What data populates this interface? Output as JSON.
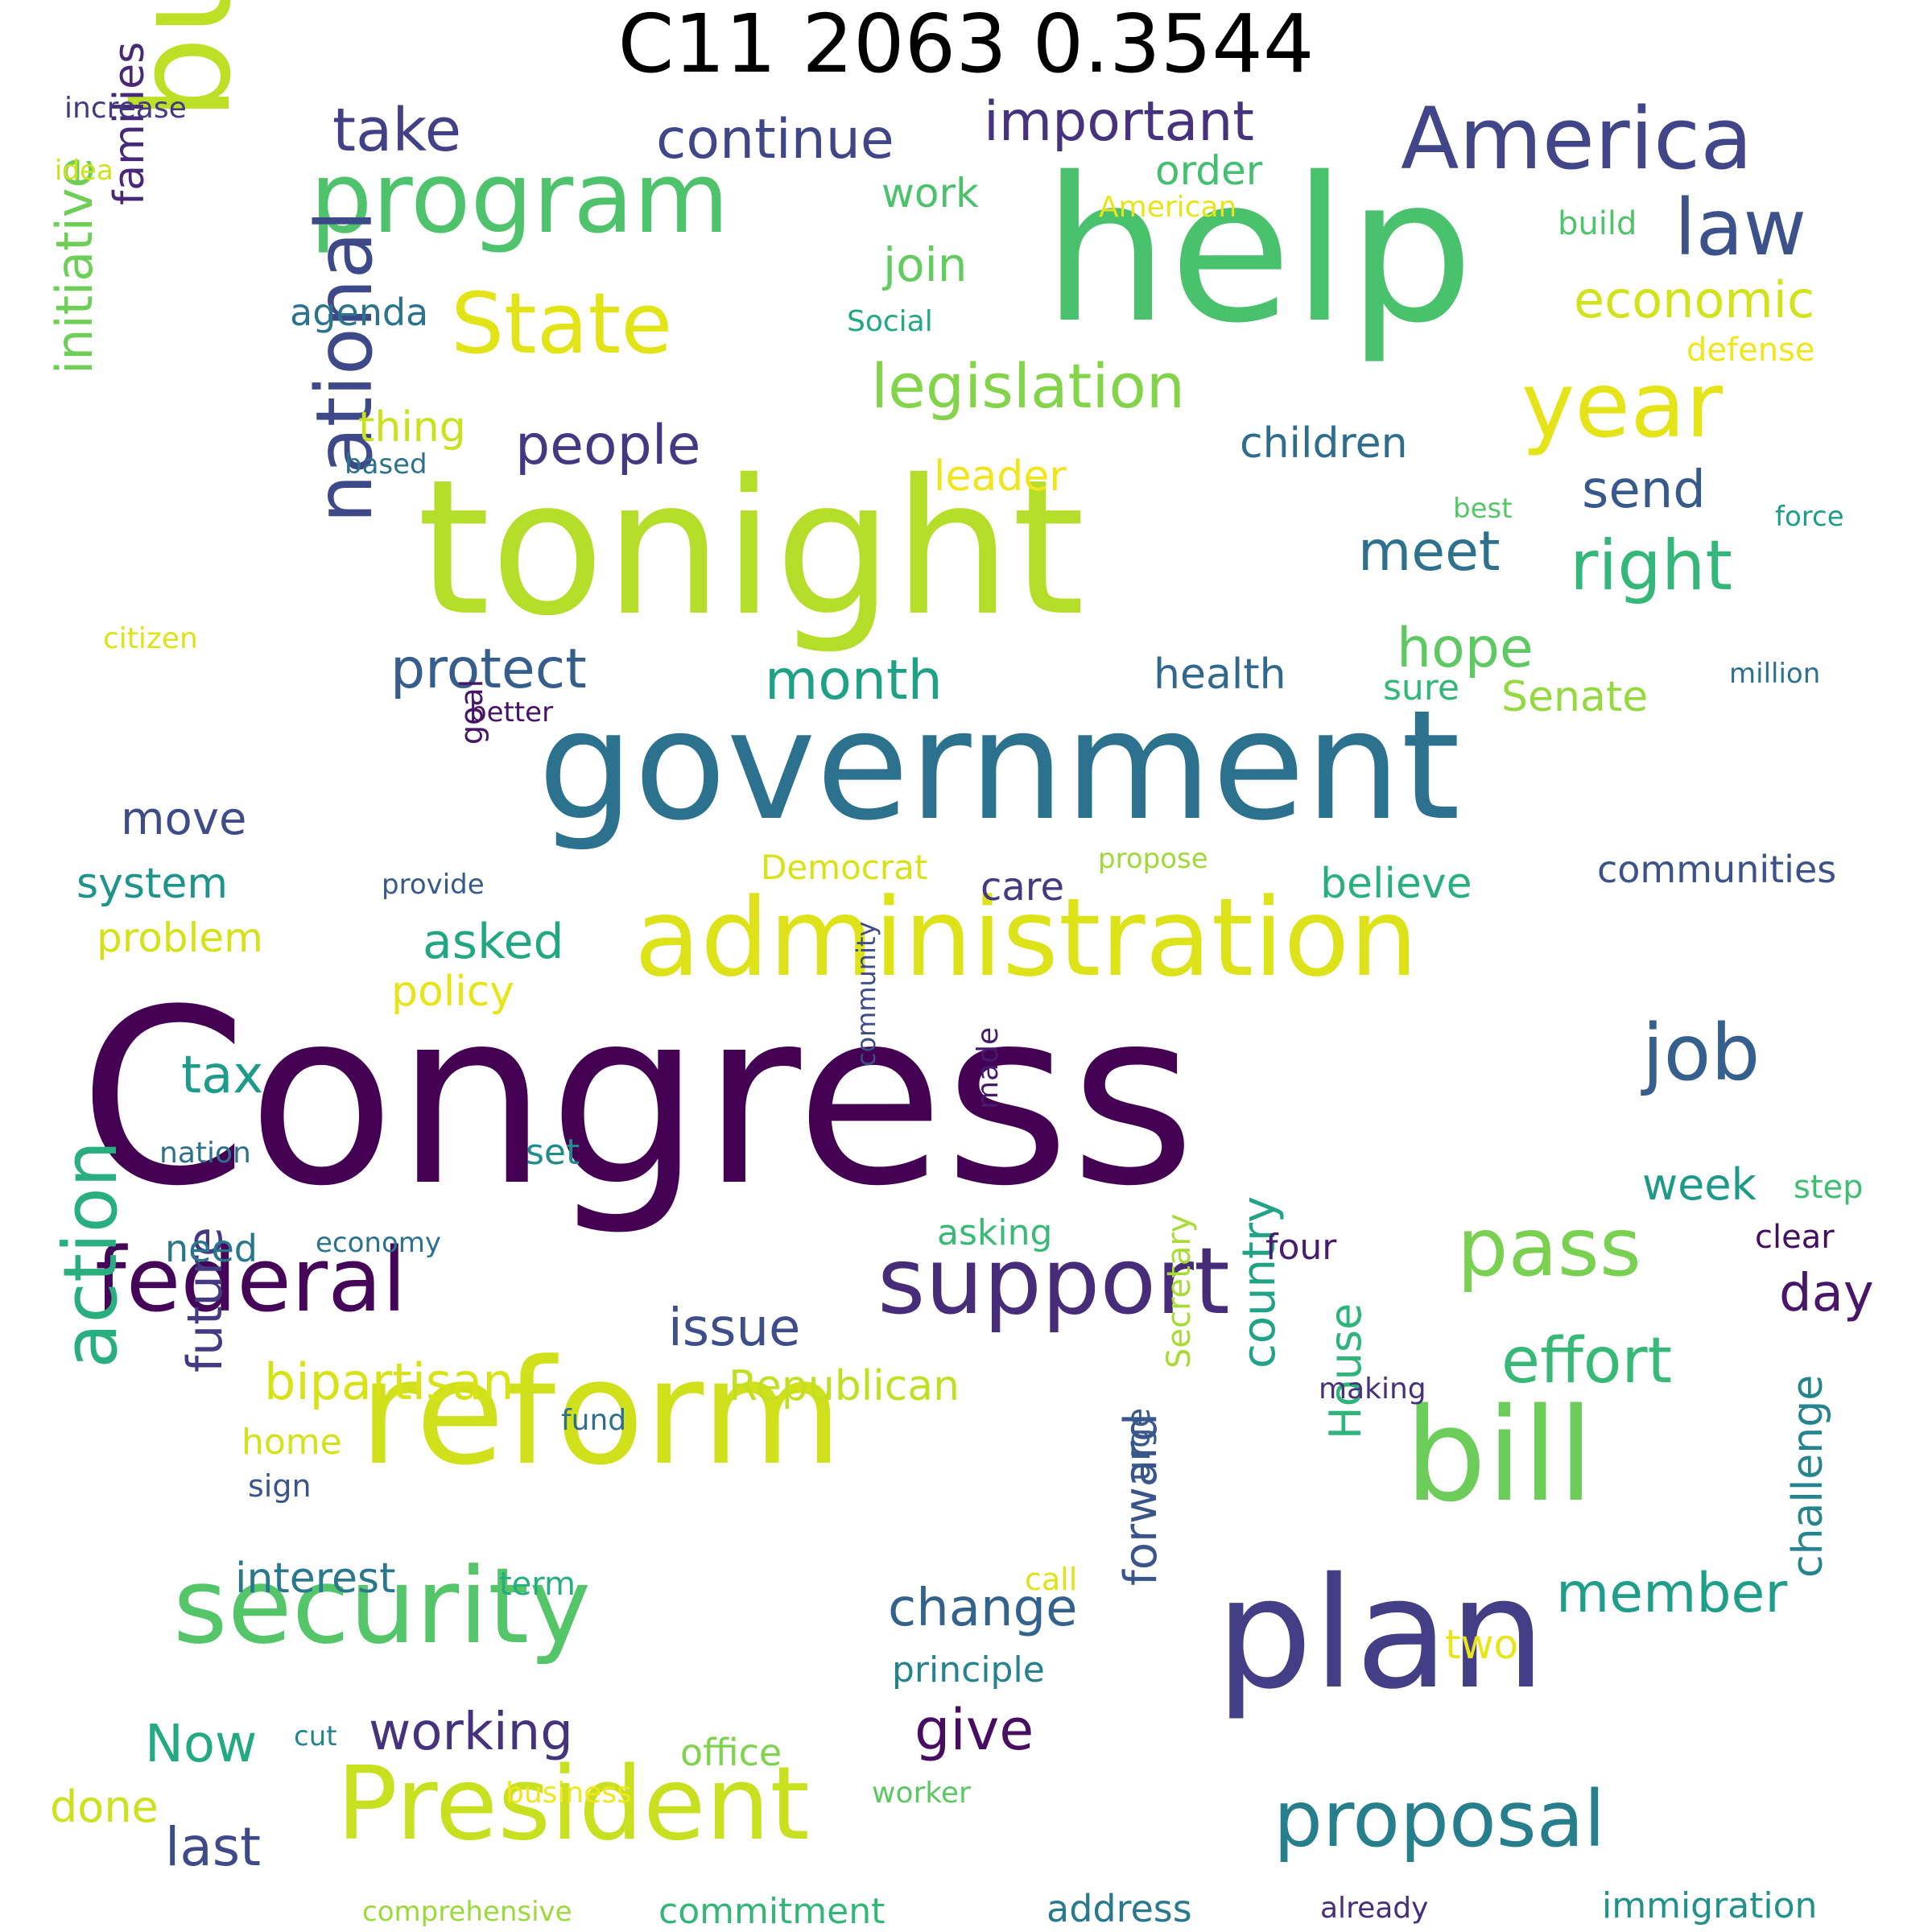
{
  "title": "C11 2063 0.3544",
  "words": [
    {
      "text": "Congress",
      "color": "#440154"
    },
    {
      "text": "tonight",
      "color": "#b5de2b"
    },
    {
      "text": "help",
      "color": "#4ac16d"
    },
    {
      "text": "government",
      "color": "#2c728e"
    },
    {
      "text": "budget",
      "color": "#bddf26"
    },
    {
      "text": "plan",
      "color": "#433e85"
    },
    {
      "text": "reform",
      "color": "#d0e11c"
    },
    {
      "text": "bill",
      "color": "#6ccd5a"
    },
    {
      "text": "administration",
      "color": "#dde318"
    },
    {
      "text": "security",
      "color": "#54c568"
    },
    {
      "text": "President",
      "color": "#c8e020"
    },
    {
      "text": "program",
      "color": "#4ec36b"
    },
    {
      "text": "America",
      "color": "#404688"
    },
    {
      "text": "support",
      "color": "#472c7a"
    },
    {
      "text": "federal",
      "color": "#450559"
    },
    {
      "text": "year",
      "color": "#e5e419"
    },
    {
      "text": "State",
      "color": "#e2e418"
    },
    {
      "text": "pass",
      "color": "#7ad151"
    },
    {
      "text": "national",
      "color": "#3e4989"
    },
    {
      "text": "action",
      "color": "#29af7f"
    },
    {
      "text": "proposal",
      "color": "#277f8e"
    },
    {
      "text": "job",
      "color": "#355f8d"
    },
    {
      "text": "law",
      "color": "#3b528b"
    },
    {
      "text": "right",
      "color": "#35b779"
    },
    {
      "text": "legislation",
      "color": "#84d44b"
    },
    {
      "text": "continue",
      "color": "#3f4788"
    },
    {
      "text": "important",
      "color": "#46327e"
    },
    {
      "text": "take",
      "color": "#424086"
    },
    {
      "text": "people",
      "color": "#453781"
    },
    {
      "text": "economic",
      "color": "#d2e21b"
    },
    {
      "text": "effort",
      "color": "#38b977"
    },
    {
      "text": "member",
      "color": "#1f9e89"
    },
    {
      "text": "protect",
      "color": "#355e8d"
    },
    {
      "text": "month",
      "color": "#1fa187"
    },
    {
      "text": "hope",
      "color": "#5ec962"
    },
    {
      "text": "bipartisan",
      "color": "#d8e219"
    },
    {
      "text": "issue",
      "color": "#3d4e8a"
    },
    {
      "text": "initiative",
      "color": "#6ece58"
    },
    {
      "text": "families",
      "color": "#482878"
    },
    {
      "text": "meet",
      "color": "#2d718e"
    },
    {
      "text": "send",
      "color": "#38598c"
    },
    {
      "text": "join",
      "color": "#63cb5f"
    },
    {
      "text": "children",
      "color": "#2f6c8e"
    },
    {
      "text": "change",
      "color": "#33638d"
    },
    {
      "text": "country",
      "color": "#20a386"
    },
    {
      "text": "forward",
      "color": "#3a548c"
    },
    {
      "text": "working",
      "color": "#46337e"
    },
    {
      "text": "last",
      "color": "#3e4a89"
    },
    {
      "text": "give",
      "color": "#470d60"
    },
    {
      "text": "future",
      "color": "#443983"
    },
    {
      "text": "Now",
      "color": "#23a983"
    },
    {
      "text": "Republican",
      "color": "#c2df23"
    },
    {
      "text": "health",
      "color": "#31688e"
    },
    {
      "text": "move",
      "color": "#3e4c8a"
    },
    {
      "text": "system",
      "color": "#1f948c"
    },
    {
      "text": "tax",
      "color": "#1e9b8a"
    },
    {
      "text": "asked",
      "color": "#22a785"
    },
    {
      "text": "order",
      "color": "#44bf70"
    },
    {
      "text": "agenda",
      "color": "#2c738e"
    },
    {
      "text": "thing",
      "color": "#cae11f"
    },
    {
      "text": "work",
      "color": "#4cc26c"
    },
    {
      "text": "leader",
      "color": "#f1e51d"
    },
    {
      "text": "believe",
      "color": "#2ab07f"
    },
    {
      "text": "day",
      "color": "#481769"
    },
    {
      "text": "interest",
      "color": "#2a788e"
    },
    {
      "text": "House",
      "color": "#2fb47c"
    },
    {
      "text": "challenge",
      "color": "#25848e"
    },
    {
      "text": "care",
      "color": "#443983"
    },
    {
      "text": "policy",
      "color": "#e7e419"
    },
    {
      "text": "problem",
      "color": "#d5e21a"
    },
    {
      "text": "Senate",
      "color": "#95d840"
    },
    {
      "text": "week",
      "color": "#1f998a"
    },
    {
      "text": "communities",
      "color": "#3b528b"
    },
    {
      "text": "two",
      "color": "#eae51a"
    },
    {
      "text": "immigration",
      "color": "#21918c"
    },
    {
      "text": "address",
      "color": "#29798e"
    },
    {
      "text": "commitment",
      "color": "#34b679"
    },
    {
      "text": "done",
      "color": "#cde11d"
    },
    {
      "text": "office",
      "color": "#7fd34e"
    },
    {
      "text": "principle",
      "color": "#26828e"
    },
    {
      "text": "Secretary",
      "color": "#a8db34"
    },
    {
      "text": "goal",
      "color": "#481467"
    },
    {
      "text": "Democrat",
      "color": "#d8e219"
    },
    {
      "text": "sure",
      "color": "#32b67a"
    },
    {
      "text": "four",
      "color": "#481d6f"
    },
    {
      "text": "asking",
      "color": "#3aba76"
    },
    {
      "text": "clear",
      "color": "#440f5f"
    },
    {
      "text": "step",
      "color": "#40bd72"
    },
    {
      "text": "set",
      "color": "#228c8d"
    },
    {
      "text": "need",
      "color": "#2a768e"
    },
    {
      "text": "home",
      "color": "#d2e21b"
    },
    {
      "text": "sign",
      "color": "#39558c"
    },
    {
      "text": "term",
      "color": "#26ad81"
    },
    {
      "text": "urge",
      "color": "#38598c"
    },
    {
      "text": "made",
      "color": "#481a6c"
    },
    {
      "text": "economy",
      "color": "#2c718e"
    },
    {
      "text": "community",
      "color": "#3d4d8a"
    },
    {
      "text": "nation",
      "color": "#2d708e"
    },
    {
      "text": "fund",
      "color": "#2e6e8e"
    },
    {
      "text": "making",
      "color": "#46307e"
    },
    {
      "text": "call",
      "color": "#dfe318"
    },
    {
      "text": "cut",
      "color": "#25838e"
    },
    {
      "text": "business",
      "color": "#f1e51d"
    },
    {
      "text": "worker",
      "color": "#5cc863"
    },
    {
      "text": "already",
      "color": "#472d7b"
    },
    {
      "text": "comprehensive",
      "color": "#9bd93c"
    },
    {
      "text": "propose",
      "color": "#9fda3a"
    },
    {
      "text": "provide",
      "color": "#375a8c"
    },
    {
      "text": "better",
      "color": "#471365"
    },
    {
      "text": "citizen",
      "color": "#dde318"
    },
    {
      "text": "based",
      "color": "#2c718e"
    },
    {
      "text": "best",
      "color": "#56c667"
    },
    {
      "text": "force",
      "color": "#1e9d89"
    },
    {
      "text": "million",
      "color": "#2c728e"
    },
    {
      "text": "defense",
      "color": "#f1e51d"
    },
    {
      "text": "build",
      "color": "#50c46a"
    },
    {
      "text": "Social",
      "color": "#22a884"
    },
    {
      "text": "American",
      "color": "#e7e419"
    },
    {
      "text": "idea",
      "color": "#cde11d"
    },
    {
      "text": "increase",
      "color": "#443983"
    }
  ]
}
